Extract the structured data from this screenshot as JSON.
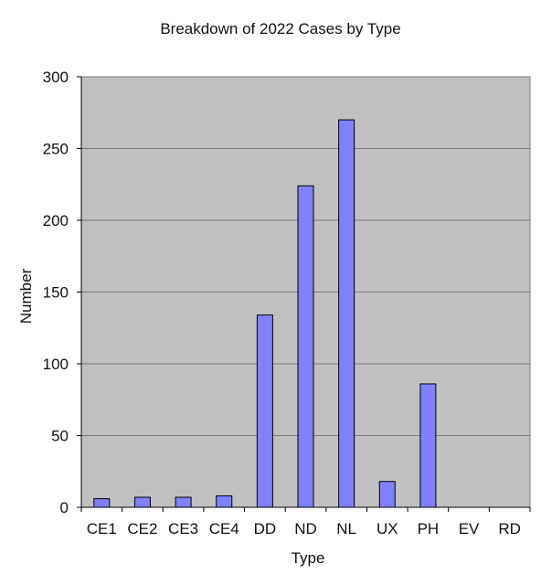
{
  "chart_data": {
    "type": "bar",
    "title": "Breakdown of 2022 Cases by Type",
    "xlabel": "Type",
    "ylabel": "Number",
    "categories": [
      "CE1",
      "CE2",
      "CE3",
      "CE4",
      "DD",
      "ND",
      "NL",
      "UX",
      "PH",
      "EV",
      "RD"
    ],
    "values": [
      6,
      7,
      7,
      8,
      134,
      224,
      270,
      18,
      86,
      0,
      0
    ],
    "ylim": [
      0,
      300
    ],
    "yticks": [
      0,
      50,
      100,
      150,
      200,
      250,
      300
    ],
    "grid": true,
    "legend": "none",
    "colors": {
      "bar": "#8080ff",
      "plot_background": "#c0c0c0"
    }
  }
}
